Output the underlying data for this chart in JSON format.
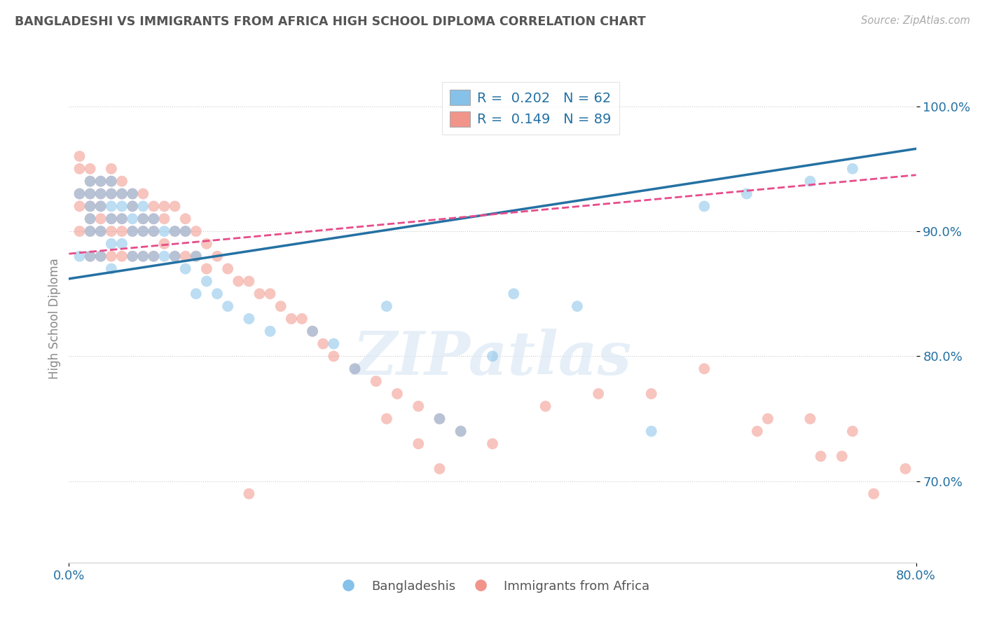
{
  "title": "BANGLADESHI VS IMMIGRANTS FROM AFRICA HIGH SCHOOL DIPLOMA CORRELATION CHART",
  "source": "Source: ZipAtlas.com",
  "ylabel": "High School Diploma",
  "xlim": [
    0.0,
    0.8
  ],
  "ylim": [
    0.635,
    1.025
  ],
  "yticks": [
    0.7,
    0.8,
    0.9,
    1.0
  ],
  "ytick_labels": [
    "70.0%",
    "80.0%",
    "90.0%",
    "100.0%"
  ],
  "xticks": [
    0.0,
    0.8
  ],
  "xtick_labels": [
    "0.0%",
    "80.0%"
  ],
  "legend_R1": "0.202",
  "legend_N1": "62",
  "legend_R2": "0.149",
  "legend_N2": "89",
  "blue_color": "#85c1e9",
  "pink_color": "#f1948a",
  "blue_line_color": "#2471a3",
  "pink_line_color": "#e74c8b",
  "title_color": "#555555",
  "axis_label_color": "#2471a3",
  "background_color": "#ffffff",
  "watermark_text": "ZIPatlas",
  "blue_scatter_x": [
    0.01,
    0.01,
    0.02,
    0.02,
    0.02,
    0.02,
    0.02,
    0.02,
    0.03,
    0.03,
    0.03,
    0.03,
    0.03,
    0.04,
    0.04,
    0.04,
    0.04,
    0.04,
    0.04,
    0.05,
    0.05,
    0.05,
    0.05,
    0.06,
    0.06,
    0.06,
    0.06,
    0.06,
    0.07,
    0.07,
    0.07,
    0.07,
    0.08,
    0.08,
    0.08,
    0.09,
    0.09,
    0.1,
    0.1,
    0.11,
    0.11,
    0.12,
    0.12,
    0.13,
    0.14,
    0.15,
    0.17,
    0.19,
    0.23,
    0.25,
    0.27,
    0.3,
    0.35,
    0.37,
    0.4,
    0.42,
    0.48,
    0.55,
    0.6,
    0.64,
    0.7,
    0.74
  ],
  "blue_scatter_y": [
    0.93,
    0.88,
    0.94,
    0.93,
    0.92,
    0.91,
    0.9,
    0.88,
    0.94,
    0.93,
    0.92,
    0.9,
    0.88,
    0.94,
    0.93,
    0.92,
    0.91,
    0.89,
    0.87,
    0.93,
    0.92,
    0.91,
    0.89,
    0.93,
    0.92,
    0.91,
    0.9,
    0.88,
    0.92,
    0.91,
    0.9,
    0.88,
    0.91,
    0.9,
    0.88,
    0.9,
    0.88,
    0.9,
    0.88,
    0.9,
    0.87,
    0.88,
    0.85,
    0.86,
    0.85,
    0.84,
    0.83,
    0.82,
    0.82,
    0.81,
    0.79,
    0.84,
    0.75,
    0.74,
    0.8,
    0.85,
    0.84,
    0.74,
    0.92,
    0.93,
    0.94,
    0.95
  ],
  "pink_scatter_x": [
    0.01,
    0.01,
    0.01,
    0.01,
    0.01,
    0.02,
    0.02,
    0.02,
    0.02,
    0.02,
    0.02,
    0.02,
    0.03,
    0.03,
    0.03,
    0.03,
    0.03,
    0.03,
    0.04,
    0.04,
    0.04,
    0.04,
    0.04,
    0.04,
    0.05,
    0.05,
    0.05,
    0.05,
    0.05,
    0.06,
    0.06,
    0.06,
    0.06,
    0.07,
    0.07,
    0.07,
    0.07,
    0.08,
    0.08,
    0.08,
    0.08,
    0.09,
    0.09,
    0.09,
    0.1,
    0.1,
    0.1,
    0.11,
    0.11,
    0.11,
    0.12,
    0.12,
    0.13,
    0.13,
    0.14,
    0.15,
    0.16,
    0.17,
    0.18,
    0.19,
    0.2,
    0.21,
    0.22,
    0.23,
    0.24,
    0.25,
    0.27,
    0.29,
    0.31,
    0.33,
    0.35,
    0.37,
    0.17,
    0.3,
    0.33,
    0.35,
    0.4,
    0.45,
    0.5,
    0.55,
    0.6,
    0.65,
    0.7,
    0.73,
    0.76,
    0.79,
    0.66,
    0.71,
    0.74
  ],
  "pink_scatter_y": [
    0.96,
    0.95,
    0.93,
    0.92,
    0.9,
    0.95,
    0.94,
    0.93,
    0.92,
    0.91,
    0.9,
    0.88,
    0.94,
    0.93,
    0.92,
    0.91,
    0.9,
    0.88,
    0.95,
    0.94,
    0.93,
    0.91,
    0.9,
    0.88,
    0.94,
    0.93,
    0.91,
    0.9,
    0.88,
    0.93,
    0.92,
    0.9,
    0.88,
    0.93,
    0.91,
    0.9,
    0.88,
    0.92,
    0.91,
    0.9,
    0.88,
    0.92,
    0.91,
    0.89,
    0.92,
    0.9,
    0.88,
    0.91,
    0.9,
    0.88,
    0.9,
    0.88,
    0.89,
    0.87,
    0.88,
    0.87,
    0.86,
    0.86,
    0.85,
    0.85,
    0.84,
    0.83,
    0.83,
    0.82,
    0.81,
    0.8,
    0.79,
    0.78,
    0.77,
    0.76,
    0.75,
    0.74,
    0.69,
    0.75,
    0.73,
    0.71,
    0.73,
    0.76,
    0.77,
    0.77,
    0.79,
    0.74,
    0.75,
    0.72,
    0.69,
    0.71,
    0.75,
    0.72,
    0.74
  ],
  "blue_line_x": [
    0.0,
    0.8
  ],
  "blue_line_y": [
    0.862,
    0.966
  ],
  "pink_line_x": [
    0.0,
    0.8
  ],
  "pink_line_y": [
    0.882,
    0.945
  ]
}
